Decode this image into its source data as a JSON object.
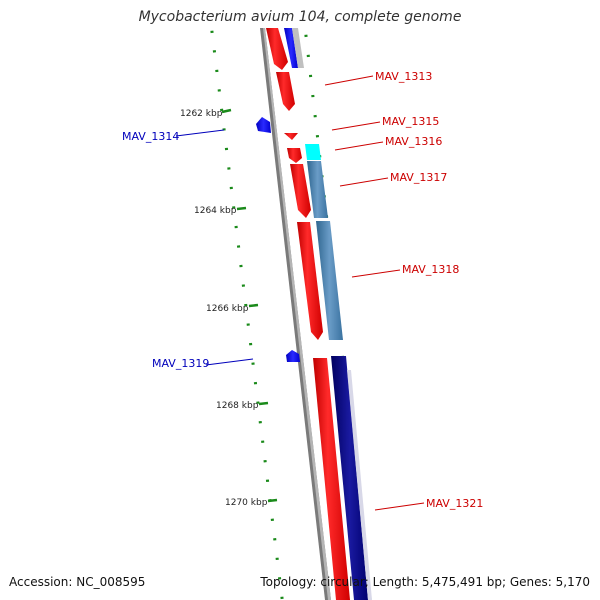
{
  "title": "Mycobacterium avium 104, complete genome",
  "accession": "Accession: NC_008595",
  "summary": "Topology: circular; Length: 5,475,491 bp; Genes: 5,170",
  "colors": {
    "forward": "#ff0000",
    "reverse": "#0000ff",
    "forward_label": "#cc0000",
    "reverse_label": "#0000bb",
    "steelblue": "#4682b4",
    "navy": "#000080",
    "cyan": "#00ffff",
    "tick": "#1a8a1a",
    "backbone": "#888888"
  },
  "kbp_ticks": [
    "1262 kbp",
    "1264 kbp",
    "1266 kbp",
    "1268 kbp",
    "1270 kbp"
  ],
  "genes": [
    {
      "name": "MAV_1313",
      "strand": "forward"
    },
    {
      "name": "MAV_1314",
      "strand": "reverse"
    },
    {
      "name": "MAV_1315",
      "strand": "forward"
    },
    {
      "name": "MAV_1316",
      "strand": "forward"
    },
    {
      "name": "MAV_1317",
      "strand": "forward"
    },
    {
      "name": "MAV_1318",
      "strand": "forward"
    },
    {
      "name": "MAV_1319",
      "strand": "reverse"
    },
    {
      "name": "MAV_1321",
      "strand": "forward"
    }
  ]
}
